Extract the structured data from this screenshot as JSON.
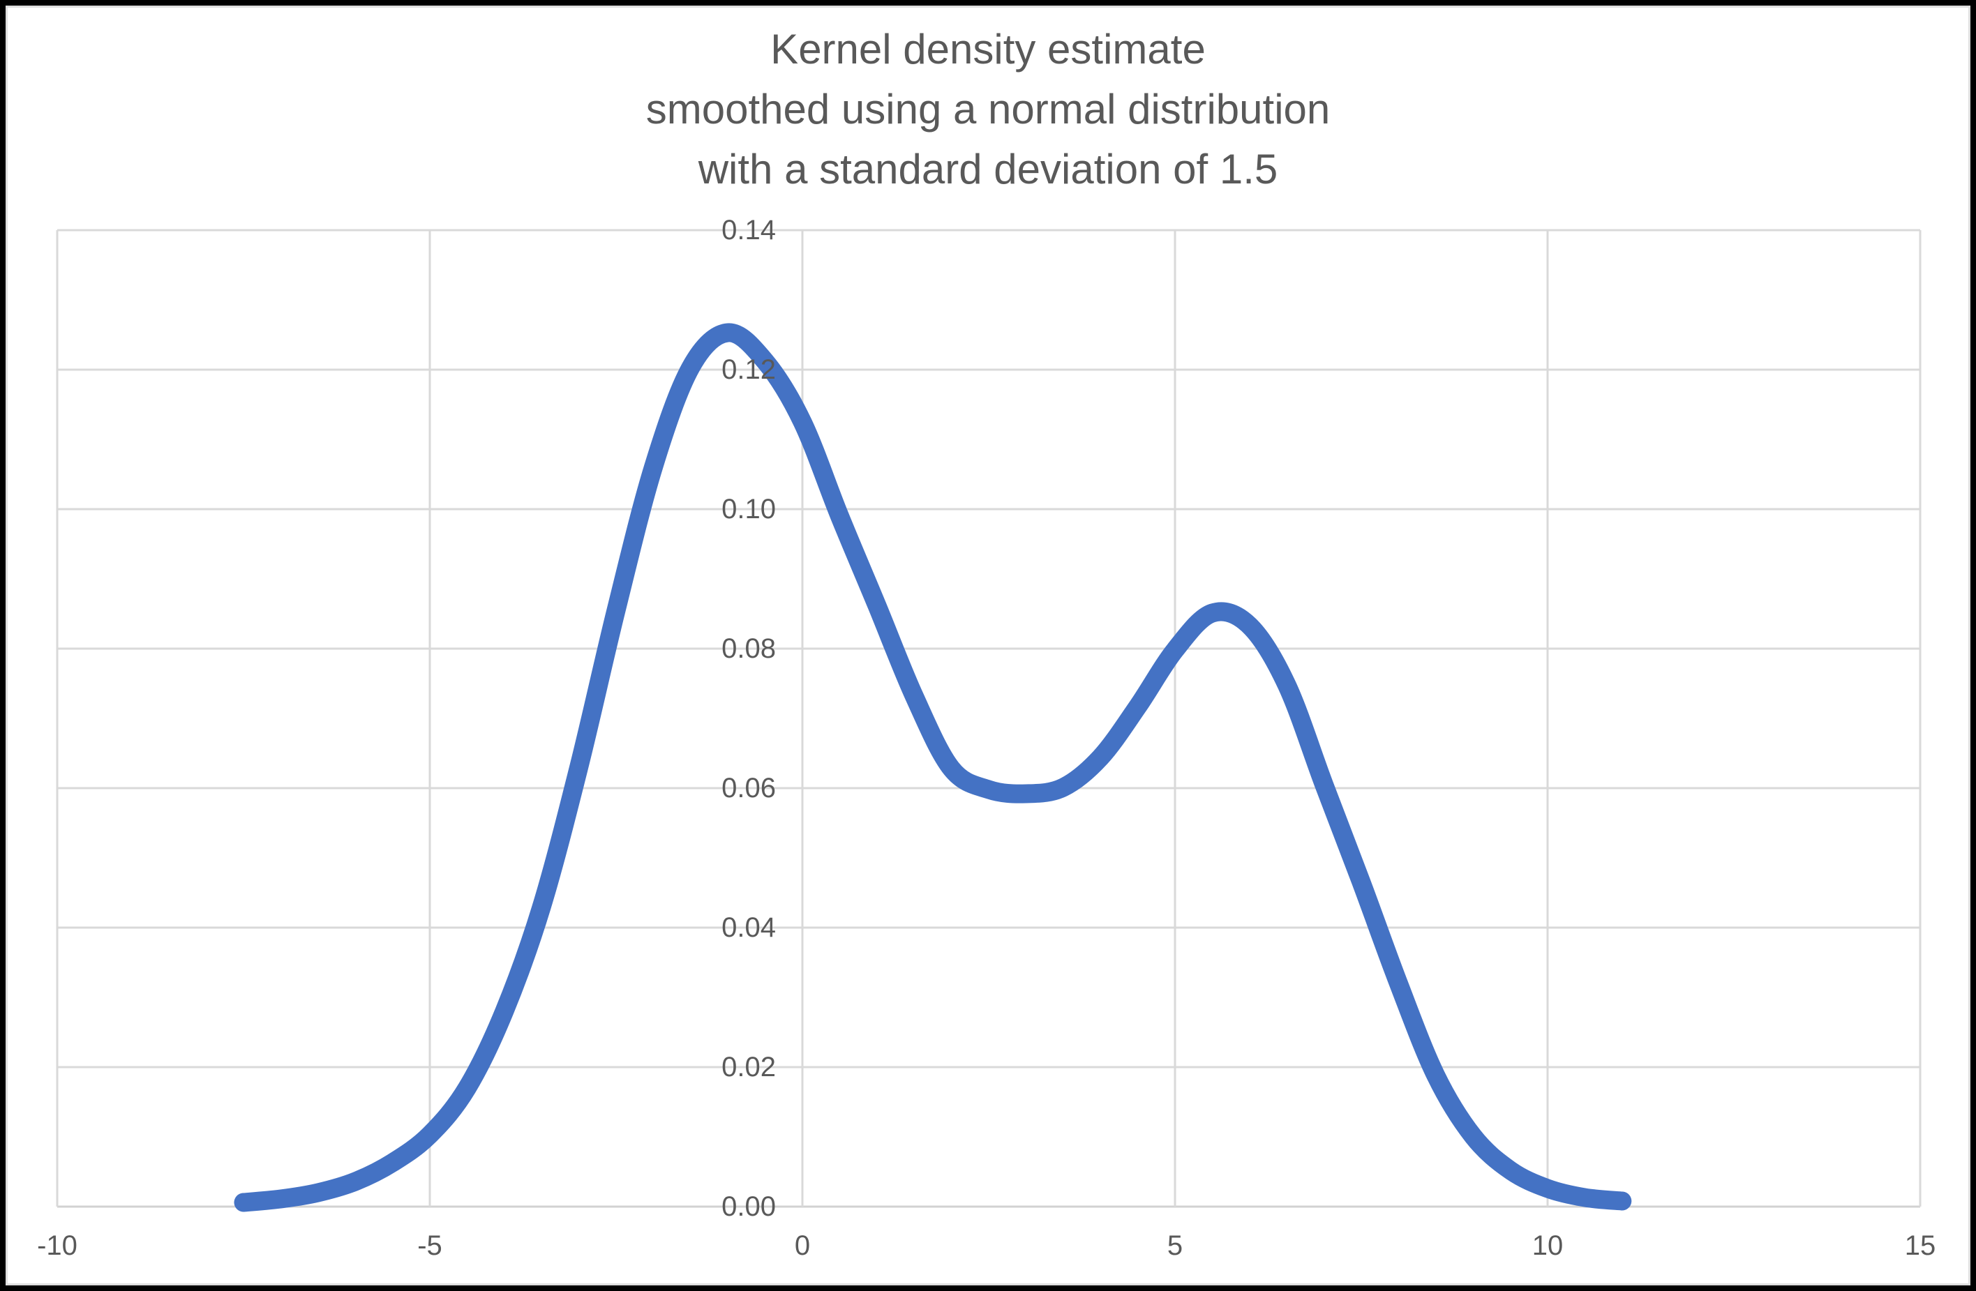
{
  "colors": {
    "accent_line": "#4472C4",
    "gridline": "#D9D9D9",
    "axis_line": "#D2D2D2",
    "text": "#595959",
    "outer_border": "#000000",
    "background": "#FFFFFF"
  },
  "chart_data": {
    "type": "line",
    "title": "Kernel density estimate smoothed using a normal distribution with a standard deviation of 1.5",
    "title_lines": [
      "Kernel density estimate",
      "smoothed using a normal distribution",
      "with a standard deviation of 1.5"
    ],
    "xlabel": "",
    "ylabel": "",
    "xlim": [
      -10,
      15
    ],
    "ylim": [
      0,
      0.14
    ],
    "grid": true,
    "legend": false,
    "x_ticks": [
      {
        "value": -10,
        "label": "-10"
      },
      {
        "value": -5,
        "label": "-5"
      },
      {
        "value": 0,
        "label": "0"
      },
      {
        "value": 5,
        "label": "5"
      },
      {
        "value": 10,
        "label": "10"
      },
      {
        "value": 15,
        "label": "15"
      }
    ],
    "y_ticks": [
      {
        "value": 0.0,
        "label": "0.00"
      },
      {
        "value": 0.02,
        "label": "0.02"
      },
      {
        "value": 0.04,
        "label": "0.04"
      },
      {
        "value": 0.06,
        "label": "0.06"
      },
      {
        "value": 0.08,
        "label": "0.08"
      },
      {
        "value": 0.1,
        "label": "0.10"
      },
      {
        "value": 0.12,
        "label": "0.12"
      },
      {
        "value": 0.14,
        "label": "0.14"
      }
    ],
    "series": [
      {
        "name": "kernel-density-estimate",
        "color": "#4472C4",
        "stroke_width": 27,
        "points": [
          [
            -7.5,
            0.0006
          ],
          [
            -7.0,
            0.0011
          ],
          [
            -6.5,
            0.002
          ],
          [
            -6.0,
            0.0036
          ],
          [
            -5.5,
            0.0063
          ],
          [
            -5.0,
            0.0103
          ],
          [
            -4.5,
            0.017
          ],
          [
            -4.0,
            0.028
          ],
          [
            -3.5,
            0.043
          ],
          [
            -3.0,
            0.063
          ],
          [
            -2.5,
            0.0855
          ],
          [
            -2.0,
            0.106
          ],
          [
            -1.5,
            0.1203
          ],
          [
            -1.0,
            0.1253
          ],
          [
            -0.5,
            0.1212
          ],
          [
            0.0,
            0.1125
          ],
          [
            0.5,
            0.099
          ],
          [
            1.0,
            0.0862
          ],
          [
            1.5,
            0.0732
          ],
          [
            2.0,
            0.0628
          ],
          [
            2.5,
            0.0598
          ],
          [
            3.0,
            0.0592
          ],
          [
            3.5,
            0.0601
          ],
          [
            4.0,
            0.0644
          ],
          [
            4.5,
            0.0717
          ],
          [
            5.0,
            0.0798
          ],
          [
            5.5,
            0.0851
          ],
          [
            6.0,
            0.0833
          ],
          [
            6.5,
            0.0748
          ],
          [
            7.0,
            0.0605
          ],
          [
            7.5,
            0.0465
          ],
          [
            8.0,
            0.032
          ],
          [
            8.5,
            0.0188
          ],
          [
            9.0,
            0.0101
          ],
          [
            9.5,
            0.0052
          ],
          [
            10.0,
            0.0026
          ],
          [
            10.5,
            0.0013
          ],
          [
            11.0,
            0.0008
          ]
        ],
        "features": {
          "left_peak": {
            "x": -1.0,
            "y": 0.125
          },
          "trough": {
            "x": 3.0,
            "y": 0.059
          },
          "right_peak": {
            "x": 5.5,
            "y": 0.085
          }
        }
      }
    ]
  }
}
